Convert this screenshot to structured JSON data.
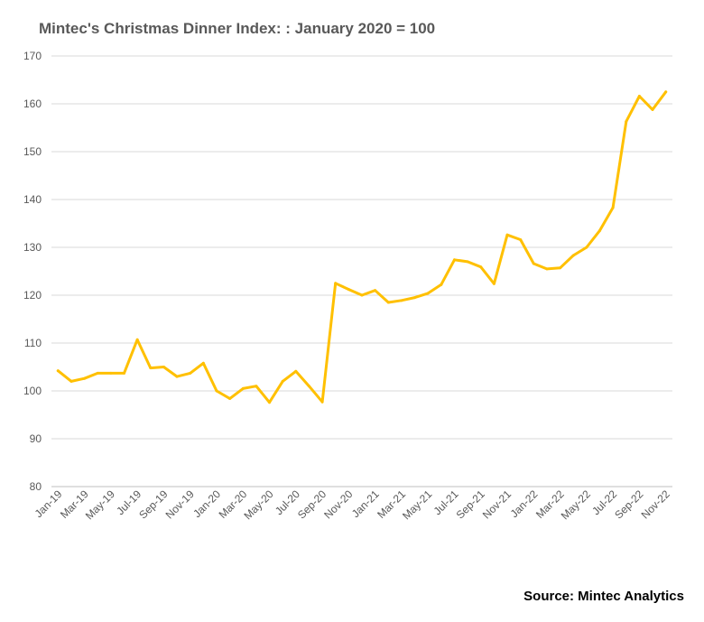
{
  "title": "Mintec's Christmas Dinner Index: : January 2020 = 100",
  "source": "Source: Mintec Analytics",
  "colors": {
    "line": "#FFC000",
    "grid": "#d9d9d9",
    "text": "#595959"
  },
  "chart_data": {
    "type": "line",
    "title": "Mintec's Christmas Dinner Index: : January 2020 = 100",
    "xlabel": "",
    "ylabel": "",
    "ylim": [
      80,
      170
    ],
    "yticks": [
      80,
      90,
      100,
      110,
      120,
      130,
      140,
      150,
      160,
      170
    ],
    "grid": "horizontal",
    "x": [
      "Jan-19",
      "Feb-19",
      "Mar-19",
      "Apr-19",
      "May-19",
      "Jun-19",
      "Jul-19",
      "Aug-19",
      "Sep-19",
      "Oct-19",
      "Nov-19",
      "Dec-19",
      "Jan-20",
      "Feb-20",
      "Mar-20",
      "Apr-20",
      "May-20",
      "Jun-20",
      "Jul-20",
      "Aug-20",
      "Sep-20",
      "Oct-20",
      "Nov-20",
      "Dec-20",
      "Jan-21",
      "Feb-21",
      "Mar-21",
      "Apr-21",
      "May-21",
      "Jun-21",
      "Jul-21",
      "Aug-21",
      "Sep-21",
      "Oct-21",
      "Nov-21",
      "Dec-21",
      "Jan-22",
      "Feb-22",
      "Mar-22",
      "Apr-22",
      "May-22",
      "Jun-22",
      "Jul-22",
      "Aug-22",
      "Sep-22",
      "Oct-22",
      "Nov-22"
    ],
    "xtick_labels": [
      "Jan-19",
      "Mar-19",
      "May-19",
      "Jul-19",
      "Sep-19",
      "Nov-19",
      "Jan-20",
      "Mar-20",
      "May-20",
      "Jul-20",
      "Sep-20",
      "Nov-20",
      "Jan-21",
      "Mar-21",
      "May-21",
      "Jul-21",
      "Sep-21",
      "Nov-21",
      "Jan-22",
      "Mar-22",
      "May-22",
      "Jul-22",
      "Sep-22",
      "Nov-22"
    ],
    "series": [
      {
        "values": [
          104.2,
          102.0,
          102.6,
          103.7,
          103.7,
          103.7,
          110.7,
          104.8,
          105.0,
          103.0,
          103.7,
          105.8,
          100.0,
          98.4,
          100.5,
          101.0,
          97.6,
          102.0,
          104.1,
          101.0,
          97.7,
          122.5,
          121.2,
          120.0,
          121.0,
          118.5,
          118.9,
          119.5,
          120.4,
          122.2,
          127.4,
          127.0,
          125.9,
          122.4,
          132.6,
          131.6,
          126.6,
          125.5,
          125.7,
          128.3,
          130.0,
          133.5,
          138.3,
          156.3,
          161.6,
          158.8,
          162.5
        ]
      }
    ]
  }
}
